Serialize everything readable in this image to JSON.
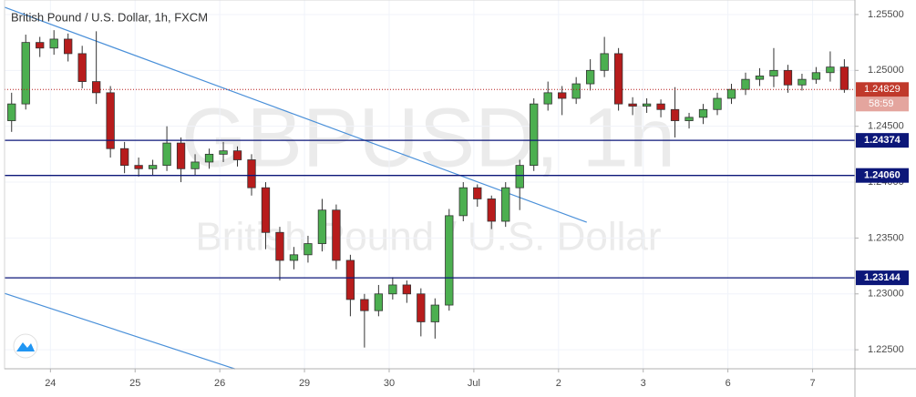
{
  "chart_data": {
    "type": "candlestick",
    "title": "British Pound / U.S. Dollar, 1h, FXCM",
    "watermark": {
      "symbol": "GBPUSD, 1h",
      "description": "British Pound / U.S. Dollar"
    },
    "x": [
      2,
      6,
      10,
      14,
      18,
      22,
      26,
      30,
      34,
      38,
      42,
      46,
      50,
      54,
      58,
      62,
      66,
      70,
      74,
      78,
      82,
      86,
      90,
      94,
      98,
      102,
      106,
      110,
      114,
      118,
      122,
      126,
      130,
      134,
      138,
      142,
      146,
      150,
      154,
      158,
      162,
      166,
      170,
      174,
      178,
      182,
      186,
      190,
      194,
      198,
      202,
      206,
      210,
      214,
      218,
      222,
      226,
      230,
      234,
      238
    ],
    "open": [
      1.2455,
      1.247,
      1.2525,
      1.252,
      1.2528,
      1.2515,
      1.249,
      1.248,
      1.243,
      1.2415,
      1.2412,
      1.2415,
      1.2435,
      1.2412,
      1.2418,
      1.2425,
      1.2428,
      1.242,
      1.2395,
      1.2355,
      1.233,
      1.2335,
      1.2345,
      1.2375,
      1.233,
      1.2295,
      1.2285,
      1.23,
      1.2308,
      1.23,
      1.2275,
      1.229,
      1.237,
      1.2395,
      1.2385,
      1.2365,
      1.2395,
      1.2415,
      1.247,
      1.248,
      1.2475,
      1.2488,
      1.25,
      1.2515,
      1.247,
      1.2468,
      1.247,
      1.2465,
      1.2455,
      1.2458,
      1.2465,
      1.2475,
      1.2483,
      1.2492,
      1.2495,
      1.25,
      1.2487,
      1.2492,
      1.2498,
      1.2503
    ],
    "high": [
      1.248,
      1.2532,
      1.253,
      1.2536,
      1.2533,
      1.2522,
      1.2535,
      1.2486,
      1.2436,
      1.2422,
      1.242,
      1.245,
      1.244,
      1.2425,
      1.243,
      1.2436,
      1.2432,
      1.2425,
      1.24,
      1.236,
      1.2342,
      1.2352,
      1.2385,
      1.238,
      1.2335,
      1.23,
      1.2308,
      1.2315,
      1.2312,
      1.2305,
      1.2296,
      1.2376,
      1.24,
      1.2398,
      1.2388,
      1.24,
      1.242,
      1.2475,
      1.249,
      1.2486,
      1.2494,
      1.251,
      1.253,
      1.252,
      1.2476,
      1.2475,
      1.2474,
      1.2485,
      1.2462,
      1.247,
      1.248,
      1.2488,
      1.2498,
      1.2502,
      1.252,
      1.2505,
      1.2497,
      1.2503,
      1.2517,
      1.251
    ],
    "low": [
      1.2445,
      1.2465,
      1.2512,
      1.2514,
      1.2508,
      1.2484,
      1.247,
      1.2422,
      1.2408,
      1.2405,
      1.2406,
      1.241,
      1.24,
      1.2406,
      1.2412,
      1.2418,
      1.2414,
      1.2388,
      1.234,
      1.2312,
      1.2322,
      1.2328,
      1.2338,
      1.2322,
      1.228,
      1.2252,
      1.228,
      1.2295,
      1.2292,
      1.2262,
      1.226,
      1.2285,
      1.2365,
      1.2378,
      1.2358,
      1.236,
      1.2375,
      1.241,
      1.2464,
      1.246,
      1.247,
      1.2482,
      1.2494,
      1.2464,
      1.246,
      1.2462,
      1.2458,
      1.244,
      1.2448,
      1.2452,
      1.246,
      1.247,
      1.2478,
      1.2486,
      1.2485,
      1.248,
      1.2482,
      1.2488,
      1.249,
      1.248
    ],
    "close": [
      1.247,
      1.2525,
      1.252,
      1.2528,
      1.2515,
      1.249,
      1.248,
      1.243,
      1.2415,
      1.2412,
      1.2415,
      1.2435,
      1.2412,
      1.2418,
      1.2425,
      1.2428,
      1.242,
      1.2395,
      1.2355,
      1.233,
      1.2335,
      1.2345,
      1.2375,
      1.233,
      1.2295,
      1.2285,
      1.23,
      1.2308,
      1.23,
      1.2275,
      1.229,
      1.237,
      1.2395,
      1.2385,
      1.2365,
      1.2395,
      1.2415,
      1.247,
      1.248,
      1.2475,
      1.2488,
      1.25,
      1.2515,
      1.247,
      1.2468,
      1.247,
      1.2465,
      1.2455,
      1.2458,
      1.2465,
      1.2475,
      1.2483,
      1.2492,
      1.2495,
      1.25,
      1.2487,
      1.2492,
      1.2498,
      1.2503,
      1.24829
    ],
    "up_color": "#4caf50",
    "down_color": "#b71c1c",
    "xlim": [
      0,
      241
    ],
    "ylim": [
      1.2233,
      1.2563
    ],
    "xticks": [
      {
        "value": 13,
        "label": "24"
      },
      {
        "value": 37,
        "label": "25"
      },
      {
        "value": 61,
        "label": "26"
      },
      {
        "value": 85,
        "label": "29"
      },
      {
        "value": 109,
        "label": "30"
      },
      {
        "value": 133,
        "label": "Jul"
      },
      {
        "value": 157,
        "label": "2"
      },
      {
        "value": 181,
        "label": "3"
      },
      {
        "value": 205,
        "label": "6"
      },
      {
        "value": 229,
        "label": "7"
      }
    ],
    "yticks": [
      {
        "value": 1.255,
        "label": "1.25500"
      },
      {
        "value": 1.25,
        "label": "1.25000"
      },
      {
        "value": 1.245,
        "label": "1.24500"
      },
      {
        "value": 1.24,
        "label": "1.24000"
      },
      {
        "value": 1.235,
        "label": "1.23500"
      },
      {
        "value": 1.23,
        "label": "1.23000"
      },
      {
        "value": 1.225,
        "label": "1.22500"
      }
    ],
    "grid": true,
    "levels": [
      1.24374,
      1.2406,
      1.23144
    ],
    "level_labels": [
      "1.24374",
      "1.24060",
      "1.23144"
    ],
    "level_color": "#0c1779",
    "last_price": 1.24829,
    "countdown": "58:59",
    "trendlines": [
      {
        "x": [
          0,
          165
        ],
        "y": [
          1.25565,
          1.23641
        ]
      },
      {
        "x": [
          0,
          65.3
        ],
        "y": [
          1.23005,
          1.22329
        ]
      }
    ],
    "trendline_color": "#4a90d9"
  }
}
